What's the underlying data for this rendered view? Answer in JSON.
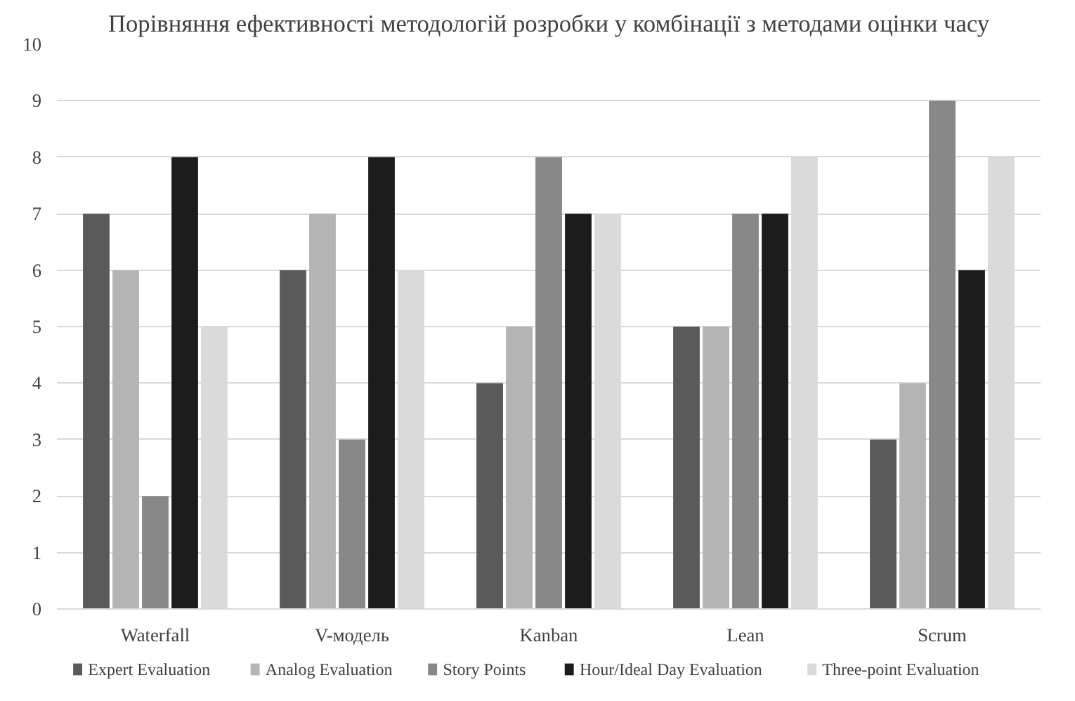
{
  "chart_data": {
    "type": "bar",
    "title": "Порівняння ефективності методологій розробки у комбінації з методами оцінки часу",
    "categories": [
      "Waterfall",
      "V-модель",
      "Kanban",
      "Lean",
      "Scrum"
    ],
    "series": [
      {
        "name": "Expert Evaluation",
        "color": "#5a5a5a",
        "values": [
          7,
          6,
          4,
          5,
          3
        ]
      },
      {
        "name": "Analog Evaluation",
        "color": "#b4b4b4",
        "values": [
          6,
          7,
          5,
          5,
          4
        ]
      },
      {
        "name": "Story Points",
        "color": "#888888",
        "values": [
          2,
          3,
          8,
          7,
          9
        ]
      },
      {
        "name": "Hour/Ideal Day Evaluation",
        "color": "#1c1c1c",
        "values": [
          8,
          8,
          7,
          7,
          6
        ]
      },
      {
        "name": "Three-point Evaluation",
        "color": "#dadada",
        "values": [
          5,
          6,
          7,
          8,
          8
        ]
      }
    ],
    "ylim": [
      0,
      10
    ],
    "yticks": [
      0,
      1,
      2,
      3,
      4,
      5,
      6,
      7,
      8,
      9,
      10
    ],
    "grid": "y",
    "legend": "bottom"
  }
}
